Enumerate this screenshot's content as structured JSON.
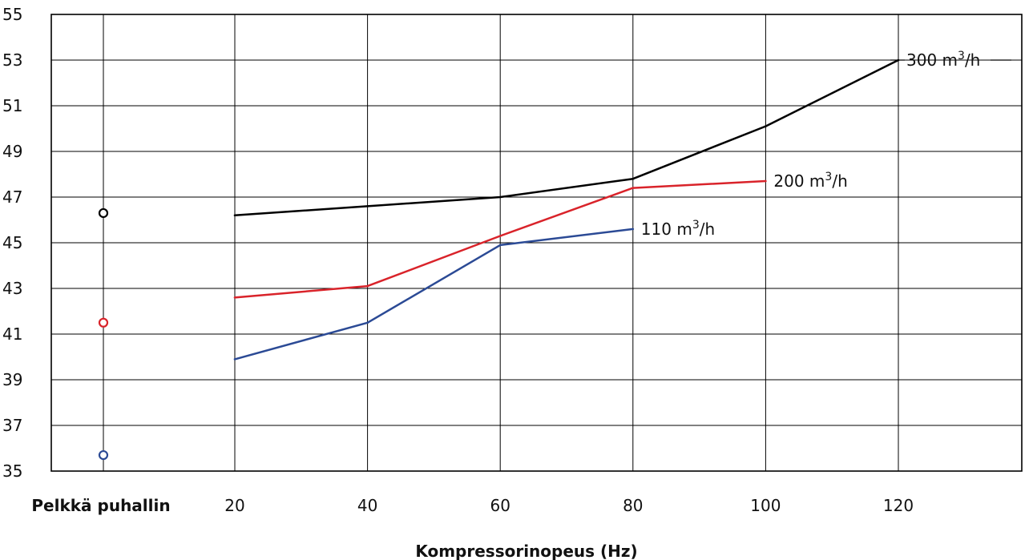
{
  "chart_data": {
    "type": "line",
    "xlabel": "Kompressorinopeus (Hz)",
    "x_first_label": "Pelkkä puhallin",
    "x_ticks": [
      "20",
      "40",
      "60",
      "80",
      "100",
      "120"
    ],
    "ylim": [
      35,
      55
    ],
    "y_ticks": [
      "35",
      "37",
      "39",
      "41",
      "43",
      "45",
      "47",
      "49",
      "51",
      "53",
      "55"
    ],
    "grid": true,
    "series": [
      {
        "name": "300 m3/h",
        "label_main": "300 m",
        "label_sup": "3",
        "label_tail": "/h",
        "color": "#000000",
        "fan_only": 46.3,
        "x": [
          20,
          40,
          60,
          80,
          100,
          120
        ],
        "values": [
          46.2,
          46.6,
          47.0,
          47.8,
          50.1,
          53.0
        ]
      },
      {
        "name": "200 m3/h",
        "label_main": "200 m",
        "label_sup": "3",
        "label_tail": "/h",
        "color": "#d9232a",
        "fan_only": 41.5,
        "x": [
          20,
          40,
          60,
          80,
          100
        ],
        "values": [
          42.6,
          43.1,
          45.3,
          47.4,
          47.7
        ]
      },
      {
        "name": "110 m3/h",
        "label_main": "110 m",
        "label_sup": "3",
        "label_tail": "/h",
        "color": "#2b4a95",
        "fan_only": 35.7,
        "x": [
          20,
          40,
          60,
          80
        ],
        "values": [
          39.9,
          41.5,
          44.9,
          45.6
        ]
      }
    ]
  }
}
